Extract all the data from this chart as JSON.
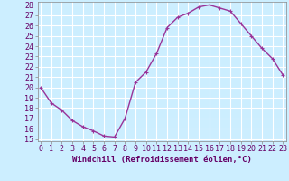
{
  "x": [
    0,
    1,
    2,
    3,
    4,
    5,
    6,
    7,
    8,
    9,
    10,
    11,
    12,
    13,
    14,
    15,
    16,
    17,
    18,
    19,
    20,
    21,
    22,
    23
  ],
  "y": [
    20.0,
    18.5,
    17.8,
    16.8,
    16.2,
    15.8,
    15.3,
    15.2,
    17.0,
    20.5,
    21.5,
    23.3,
    25.8,
    26.8,
    27.2,
    27.8,
    28.0,
    27.7,
    27.4,
    26.2,
    25.0,
    23.8,
    22.8,
    21.2
  ],
  "line_color": "#993399",
  "marker": "+",
  "marker_size": 3,
  "line_width": 1.0,
  "bg_color": "#cceeff",
  "grid_color": "#ffffff",
  "xlabel": "Windchill (Refroidissement éolien,°C)",
  "xlabel_fontsize": 6.5,
  "tick_fontsize": 6.0,
  "ylim": [
    15,
    28
  ],
  "yticks": [
    15,
    16,
    17,
    18,
    19,
    20,
    21,
    22,
    23,
    24,
    25,
    26,
    27,
    28
  ],
  "xlim": [
    0,
    23
  ],
  "xticks": [
    0,
    1,
    2,
    3,
    4,
    5,
    6,
    7,
    8,
    9,
    10,
    11,
    12,
    13,
    14,
    15,
    16,
    17,
    18,
    19,
    20,
    21,
    22,
    23
  ]
}
